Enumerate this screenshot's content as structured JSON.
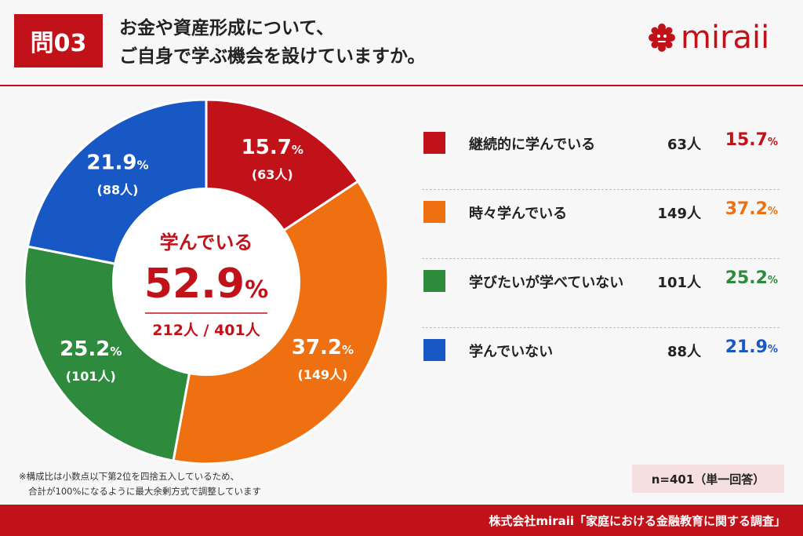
{
  "header": {
    "badge": "問03",
    "title_line1": "お金や資産形成について、",
    "title_line2": "ご自身で学ぶ機会を設けていますか。",
    "logo_text": "miraii",
    "logo_icon": "brain-icon"
  },
  "center": {
    "label": "学んでいる",
    "pct_value": "52.9",
    "pct_unit": "%",
    "count": "212人 / 401人"
  },
  "chart_data": {
    "type": "pie",
    "donut": true,
    "start": "top",
    "direction": "clockwise",
    "slices": [
      {
        "label": "継続的に学んでいる",
        "count_label": "63人",
        "count": 63,
        "value": 15.7,
        "pct_label": "15.7",
        "unit": "%",
        "color": "#c1121a",
        "slice_count_label": "(63人)"
      },
      {
        "label": "時々学んでいる",
        "count_label": "149人",
        "count": 149,
        "value": 37.2,
        "pct_label": "37.2",
        "unit": "%",
        "color": "#ee7010",
        "slice_count_label": "(149人)"
      },
      {
        "label": "学びたいが学べていない",
        "count_label": "101人",
        "count": 101,
        "value": 25.2,
        "pct_label": "25.2",
        "unit": "%",
        "color": "#2e8b3e",
        "slice_count_label": "(101人)"
      },
      {
        "label": "学んでいない",
        "count_label": "88人",
        "count": 88,
        "value": 21.9,
        "pct_label": "21.9",
        "unit": "%",
        "color": "#1758c4",
        "slice_count_label": "(88人)"
      }
    ]
  },
  "notes": {
    "line1": "※構成比は小数点以下第2位を四捨五入しているため、",
    "line2": "合計が100%になるように最大余剰方式で調整しています"
  },
  "sample": "n=401（単一回答）",
  "footer": "株式会社miraii「家庭における金融教育に関する調査」"
}
